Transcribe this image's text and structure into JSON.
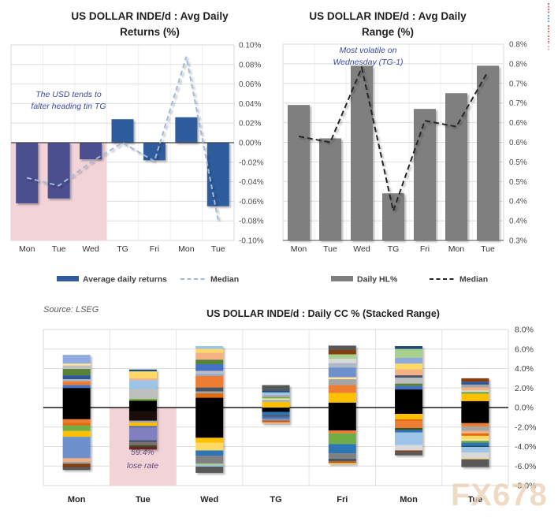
{
  "artifact_marks": {
    "colors": [
      "#E07070",
      "#6FA0D8",
      "#E07070",
      "#E07070",
      "#EFAFAF"
    ]
  },
  "chart_data": [
    {
      "type": "bar",
      "title": "US DOLLAR INDE/d : Avg Daily Returns (%)",
      "title_lines": [
        "US DOLLAR INDE/d : Avg Daily",
        "Returns (%)"
      ],
      "categories": [
        "Mon",
        "Tue",
        "Wed",
        "TG",
        "Fri",
        "Mon",
        "Tue"
      ],
      "series": [
        {
          "name": "Average daily returns",
          "type": "bar",
          "values": [
            -0.062,
            -0.057,
            -0.017,
            0.024,
            -0.018,
            0.026,
            -0.065
          ],
          "color": "#2F5B9D",
          "highlight_first_n": 3,
          "highlight_color": "#4B4F8F"
        },
        {
          "name": "Median",
          "type": "line",
          "dashed": true,
          "values": [
            -0.036,
            -0.044,
            -0.02,
            0.0,
            -0.019,
            0.088,
            -0.079
          ],
          "color": "#A3B8DA"
        }
      ],
      "ylim": [
        -0.1,
        0.1
      ],
      "ytick_labels": [
        "0.10%",
        "0.08%",
        "0.06%",
        "0.04%",
        "0.02%",
        "0.00%",
        "-0.02%",
        "-0.04%",
        "-0.06%",
        "-0.08%",
        "-0.10%"
      ],
      "annotation": {
        "lines": [
          "The USD tends to",
          "falter heading tin TG"
        ],
        "color": "#3A4A9F"
      },
      "highlight_region": {
        "categories": [
          "Mon",
          "Tue",
          "Wed"
        ],
        "from": 0,
        "to": -0.1,
        "color": "#F2D4D8"
      },
      "legend_position": "bottom",
      "grid": true
    },
    {
      "type": "bar",
      "title": "US DOLLAR INDE/d : Avg Daily Range (%)",
      "title_lines": [
        "US DOLLAR INDE/d : Avg Daily",
        "Range (%)"
      ],
      "categories": [
        "Mon",
        "Tue",
        "Wed",
        "TG",
        "Fri",
        "Mon",
        "Tue"
      ],
      "series": [
        {
          "name": "Daily HL%",
          "type": "bar",
          "values": [
            0.645,
            0.56,
            0.745,
            0.42,
            0.635,
            0.675,
            0.745
          ],
          "color": "#7F7F7F"
        },
        {
          "name": "Median",
          "type": "line",
          "dashed": true,
          "values": [
            0.565,
            0.55,
            0.74,
            0.375,
            0.605,
            0.59,
            0.73
          ],
          "color": "#262626"
        }
      ],
      "ylim": [
        0.3,
        0.8
      ],
      "ytick_labels": [
        "0.8%",
        "0.8%",
        "0.7%",
        "0.7%",
        "0.6%",
        "0.6%",
        "0.5%",
        "0.5%",
        "0.4%",
        "0.4%",
        "0.3%"
      ],
      "annotation": {
        "lines": [
          "Most volatile on",
          "Wednesday (TG-1)"
        ],
        "color": "#3A4A9F"
      },
      "legend_position": "bottom",
      "grid": true
    },
    {
      "type": "bar",
      "stacked": true,
      "title": "US DOLLAR INDE/d : Daily CC % (Stacked Range)",
      "source_note": "Source: LSEG",
      "watermark": "FX678",
      "categories": [
        "Mon",
        "Tue",
        "Wed",
        "TG",
        "Fri",
        "Mon",
        "Tue"
      ],
      "ylim": [
        -8,
        8
      ],
      "ytick_labels": [
        "8.0%",
        "6.0%",
        "4.0%",
        "2.0%",
        "0.0%",
        "-2.0%",
        "-4.0%",
        "-6.0%",
        "-8.0%"
      ],
      "annotation": {
        "lines": [
          "59.4%",
          "lose rate"
        ],
        "color": "#604A7B"
      },
      "highlight_region": {
        "category_index": 1,
        "from": 0,
        "to": -8,
        "color": "#F2D4D8"
      },
      "bars": [
        {
          "label": "Mon",
          "top": 5.4,
          "segments": [
            [
              "#8FAADC",
              0.9
            ],
            [
              "#FFE699",
              0.2
            ],
            [
              "#BFBFBF",
              0.35
            ],
            [
              "#548235",
              0.65
            ],
            [
              "#2F5597",
              0.4
            ],
            [
              "#ADB9CA",
              0.2
            ],
            [
              "#ED7D31",
              0.4
            ],
            [
              "#4472C4",
              0.3
            ],
            [
              "#000000",
              3.2
            ],
            [
              "#ED7D31",
              0.35
            ],
            [
              "#E36C0A",
              0.3
            ],
            [
              "#70AD47",
              0.55
            ],
            [
              "#FFC000",
              0.6
            ],
            [
              "#6E91CE",
              2.2
            ],
            [
              "#F4B183",
              0.35
            ],
            [
              "#A5A5A5",
              0.2
            ],
            [
              "#843C0C",
              0.35
            ],
            [
              "#595959",
              0.3
            ]
          ]
        },
        {
          "label": "Tue",
          "top": 3.9,
          "segments": [
            [
              "#1F4E79",
              0.2
            ],
            [
              "#FFD966",
              0.7
            ],
            [
              "#F4B183",
              0.2
            ],
            [
              "#9DC3E6",
              0.9
            ],
            [
              "#BFBFBF",
              1.0
            ],
            [
              "#70AD47",
              0.2
            ],
            [
              "#000000",
              1.1
            ],
            [
              "#1E0E0C",
              0.95
            ],
            [
              "#A5A5A5",
              0.2
            ],
            [
              "#FFC000",
              0.35
            ],
            [
              "#4A66AC",
              0.15
            ],
            [
              "#8080C0",
              1.3
            ],
            [
              "#44546A",
              0.2
            ],
            [
              "#7F6F6F",
              0.3
            ],
            [
              "#375623",
              0.15
            ],
            [
              "#632523",
              0.3
            ]
          ]
        },
        {
          "label": "Wed",
          "top": 6.3,
          "segments": [
            [
              "#9DC3E6",
              0.3
            ],
            [
              "#FFD966",
              0.4
            ],
            [
              "#F4B183",
              0.7
            ],
            [
              "#548235",
              0.45
            ],
            [
              "#4472C4",
              0.7
            ],
            [
              "#BFBFBF",
              0.3
            ],
            [
              "#8FAADC",
              0.2
            ],
            [
              "#ED7D31",
              1.2
            ],
            [
              "#44546A",
              0.4
            ],
            [
              "#A5A5A5",
              0.2
            ],
            [
              "#E36C0A",
              0.45
            ],
            [
              "#000000",
              4.1
            ],
            [
              "#FFC000",
              0.5
            ],
            [
              "#FFD966",
              0.8
            ],
            [
              "#2E75B6",
              0.55
            ],
            [
              "#808080",
              0.8
            ],
            [
              "#A9D18E",
              0.15
            ],
            [
              "#9DC3E6",
              0.15
            ],
            [
              "#595959",
              0.65
            ]
          ]
        },
        {
          "label": "TG",
          "top": 2.3,
          "segments": [
            [
              "#595959",
              0.55
            ],
            [
              "#1F4E79",
              0.2
            ],
            [
              "#9DC3E6",
              0.3
            ],
            [
              "#A5A5A5",
              0.2
            ],
            [
              "#70AD47",
              0.12
            ],
            [
              "#FFE699",
              0.15
            ],
            [
              "#8FAADC",
              0.18
            ],
            [
              "#FFC000",
              0.6
            ],
            [
              "#000000",
              0.45
            ],
            [
              "#2E75B6",
              0.3
            ],
            [
              "#44546A",
              0.2
            ],
            [
              "#4472C4",
              0.2
            ],
            [
              "#8497B0",
              0.18
            ],
            [
              "#C55A11",
              0.17
            ],
            [
              "#F4B183",
              0.15
            ]
          ]
        },
        {
          "label": "Fri",
          "top": 6.35,
          "segments": [
            [
              "#595959",
              0.45
            ],
            [
              "#843C0C",
              0.45
            ],
            [
              "#A9D18E",
              0.45
            ],
            [
              "#D9D9D9",
              0.45
            ],
            [
              "#ADB9CA",
              0.45
            ],
            [
              "#6E91CE",
              1.0
            ],
            [
              "#FFE699",
              0.2
            ],
            [
              "#A5A5A5",
              0.6
            ],
            [
              "#ED7D31",
              0.8
            ],
            [
              "#FFC000",
              1.0
            ],
            [
              "#000000",
              2.85
            ],
            [
              "#ED7D31",
              0.3
            ],
            [
              "#70AD47",
              1.1
            ],
            [
              "#2E75B6",
              0.95
            ],
            [
              "#808080",
              0.55
            ],
            [
              "#44546A",
              0.25
            ],
            [
              "#C55A11",
              0.2
            ],
            [
              "#FFD966",
              0.1
            ]
          ]
        },
        {
          "label": "Mon",
          "top": 6.3,
          "segments": [
            [
              "#1F4E79",
              0.3
            ],
            [
              "#A9D18E",
              0.9
            ],
            [
              "#8FAADC",
              0.6
            ],
            [
              "#FFD966",
              0.6
            ],
            [
              "#F4B183",
              0.6
            ],
            [
              "#44546A",
              0.25
            ],
            [
              "#BFBFBF",
              0.6
            ],
            [
              "#548235",
              0.25
            ],
            [
              "#4472C4",
              0.35
            ],
            [
              "#000000",
              2.5
            ],
            [
              "#FFC000",
              0.55
            ],
            [
              "#E36C0A",
              0.2
            ],
            [
              "#ED7D31",
              0.7
            ],
            [
              "#375623",
              0.2
            ],
            [
              "#2E75B6",
              0.25
            ],
            [
              "#9DC3E6",
              1.3
            ],
            [
              "#D9D9D9",
              0.55
            ],
            [
              "#843C0C",
              0.15
            ],
            [
              "#595959",
              0.35
            ]
          ]
        },
        {
          "label": "Tue",
          "top": 3.0,
          "segments": [
            [
              "#843C0C",
              0.35
            ],
            [
              "#2F5597",
              0.3
            ],
            [
              "#A5A5A5",
              0.3
            ],
            [
              "#F4B183",
              0.3
            ],
            [
              "#D9D9D9",
              0.15
            ],
            [
              "#70AD47",
              0.2
            ],
            [
              "#FFC000",
              0.75
            ],
            [
              "#000000",
              2.25
            ],
            [
              "#ED7D31",
              0.35
            ],
            [
              "#A5A5A5",
              0.45
            ],
            [
              "#F4B183",
              0.25
            ],
            [
              "#E36C0A",
              0.25
            ],
            [
              "#FFD966",
              0.35
            ],
            [
              "#FFE699",
              0.15
            ],
            [
              "#70AD47",
              0.2
            ],
            [
              "#2E75B6",
              0.3
            ],
            [
              "#1F4E79",
              0.15
            ],
            [
              "#9DC3E6",
              0.55
            ],
            [
              "#D9D9D9",
              0.6
            ],
            [
              "#FFD966",
              0.1
            ],
            [
              "#595959",
              0.8
            ]
          ]
        }
      ],
      "legend_position": "none",
      "grid": true
    }
  ]
}
